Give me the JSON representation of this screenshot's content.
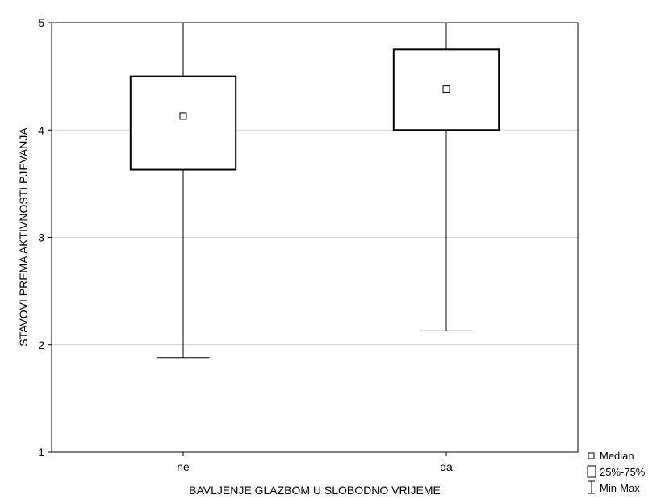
{
  "chart_data": {
    "type": "boxplot",
    "xlabel": "BAVLJENJE GLAZBOM U SLOBODNO VRIJEME",
    "ylabel": "STAVOVI PREMA AKTIVNOSTI PJEVANJA",
    "ylim": [
      1,
      5
    ],
    "yticks": [
      "1",
      "2",
      "3",
      "4",
      "5"
    ],
    "grid": true,
    "legend_position": "bottom-right",
    "categories": [
      "ne",
      "da"
    ],
    "boxes": [
      {
        "category": "ne",
        "min": 1.88,
        "q1": 3.63,
        "median": 4.13,
        "q3": 4.5,
        "max": 5.0
      },
      {
        "category": "da",
        "min": 2.13,
        "q1": 4.0,
        "median": 4.38,
        "q3": 4.75,
        "max": 5.0
      }
    ],
    "legend": {
      "median": "Median",
      "box": "25%-75%",
      "whisker": "Min-Max"
    }
  }
}
